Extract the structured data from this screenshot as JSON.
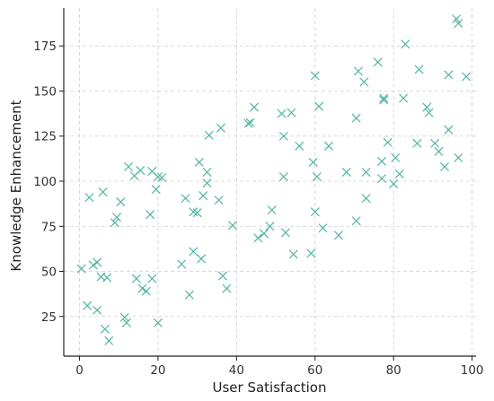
{
  "chart_data": {
    "type": "scatter",
    "title": "",
    "xlabel": "User Satisfaction",
    "ylabel": "Knowledge Enhancement",
    "xlim": [
      -4,
      101
    ],
    "ylim": [
      3,
      196
    ],
    "xticks": [
      0,
      20,
      40,
      60,
      80,
      100
    ],
    "yticks": [
      25,
      50,
      75,
      100,
      125,
      150,
      175
    ],
    "grid": true,
    "marker": "x",
    "color": "#52b5a3",
    "points": [
      {
        "x": 0.5,
        "y": 51.5
      },
      {
        "x": 2,
        "y": 31
      },
      {
        "x": 2.5,
        "y": 91
      },
      {
        "x": 3.5,
        "y": 53.5
      },
      {
        "x": 4.5,
        "y": 55
      },
      {
        "x": 4.5,
        "y": 28.5
      },
      {
        "x": 5.5,
        "y": 47
      },
      {
        "x": 6,
        "y": 94
      },
      {
        "x": 6.5,
        "y": 18
      },
      {
        "x": 7,
        "y": 46.5
      },
      {
        "x": 7.5,
        "y": 11.5
      },
      {
        "x": 9,
        "y": 77
      },
      {
        "x": 9.5,
        "y": 80
      },
      {
        "x": 10.5,
        "y": 88.5
      },
      {
        "x": 11.5,
        "y": 24.5
      },
      {
        "x": 12,
        "y": 21.5
      },
      {
        "x": 12.5,
        "y": 108
      },
      {
        "x": 14,
        "y": 103
      },
      {
        "x": 14.5,
        "y": 46
      },
      {
        "x": 15.5,
        "y": 106
      },
      {
        "x": 16,
        "y": 40.5
      },
      {
        "x": 17,
        "y": 39
      },
      {
        "x": 18,
        "y": 81.5
      },
      {
        "x": 18.5,
        "y": 105.5
      },
      {
        "x": 18.5,
        "y": 46
      },
      {
        "x": 19.5,
        "y": 95.5
      },
      {
        "x": 20,
        "y": 21.5
      },
      {
        "x": 20,
        "y": 102.5
      },
      {
        "x": 21,
        "y": 102
      },
      {
        "x": 26,
        "y": 54
      },
      {
        "x": 27,
        "y": 90.5
      },
      {
        "x": 28,
        "y": 37
      },
      {
        "x": 29,
        "y": 83
      },
      {
        "x": 29,
        "y": 61
      },
      {
        "x": 30,
        "y": 82.5
      },
      {
        "x": 30.5,
        "y": 110.5
      },
      {
        "x": 31,
        "y": 57
      },
      {
        "x": 31.5,
        "y": 92
      },
      {
        "x": 32.5,
        "y": 99
      },
      {
        "x": 32.5,
        "y": 105
      },
      {
        "x": 33,
        "y": 125.5
      },
      {
        "x": 35.5,
        "y": 89.5
      },
      {
        "x": 36,
        "y": 129.5
      },
      {
        "x": 36.5,
        "y": 47.5
      },
      {
        "x": 37.5,
        "y": 40.5
      },
      {
        "x": 39,
        "y": 75.5
      },
      {
        "x": 43,
        "y": 132
      },
      {
        "x": 43.5,
        "y": 132.5
      },
      {
        "x": 44.5,
        "y": 141
      },
      {
        "x": 45.5,
        "y": 68.5
      },
      {
        "x": 47,
        "y": 71
      },
      {
        "x": 48.5,
        "y": 75
      },
      {
        "x": 49,
        "y": 84
      },
      {
        "x": 51.5,
        "y": 137.5
      },
      {
        "x": 52,
        "y": 102.5
      },
      {
        "x": 52,
        "y": 125
      },
      {
        "x": 52.5,
        "y": 71.5
      },
      {
        "x": 54,
        "y": 138
      },
      {
        "x": 54.5,
        "y": 59.5
      },
      {
        "x": 56,
        "y": 119.5
      },
      {
        "x": 59,
        "y": 60
      },
      {
        "x": 59.5,
        "y": 110.5
      },
      {
        "x": 60,
        "y": 158.5
      },
      {
        "x": 60,
        "y": 83
      },
      {
        "x": 60.5,
        "y": 102.5
      },
      {
        "x": 61,
        "y": 141.5
      },
      {
        "x": 62,
        "y": 74
      },
      {
        "x": 63.5,
        "y": 119.5
      },
      {
        "x": 66,
        "y": 70
      },
      {
        "x": 68,
        "y": 105
      },
      {
        "x": 70.5,
        "y": 135
      },
      {
        "x": 70.5,
        "y": 78
      },
      {
        "x": 71,
        "y": 161
      },
      {
        "x": 72.5,
        "y": 155
      },
      {
        "x": 73,
        "y": 90.5
      },
      {
        "x": 73,
        "y": 105
      },
      {
        "x": 76,
        "y": 166
      },
      {
        "x": 77,
        "y": 111
      },
      {
        "x": 77,
        "y": 101.5
      },
      {
        "x": 77.5,
        "y": 145
      },
      {
        "x": 77.5,
        "y": 146
      },
      {
        "x": 78.5,
        "y": 121.5
      },
      {
        "x": 80,
        "y": 98.5
      },
      {
        "x": 80.5,
        "y": 113
      },
      {
        "x": 81.5,
        "y": 104
      },
      {
        "x": 82.5,
        "y": 146
      },
      {
        "x": 83,
        "y": 176
      },
      {
        "x": 86,
        "y": 121
      },
      {
        "x": 86.5,
        "y": 162
      },
      {
        "x": 88.5,
        "y": 141
      },
      {
        "x": 89,
        "y": 138
      },
      {
        "x": 90.5,
        "y": 121
      },
      {
        "x": 91.5,
        "y": 116.5
      },
      {
        "x": 93,
        "y": 108
      },
      {
        "x": 94,
        "y": 128.5
      },
      {
        "x": 94,
        "y": 159
      },
      {
        "x": 96,
        "y": 190
      },
      {
        "x": 96.5,
        "y": 187.5
      },
      {
        "x": 96.5,
        "y": 113
      },
      {
        "x": 98.5,
        "y": 158
      }
    ]
  }
}
